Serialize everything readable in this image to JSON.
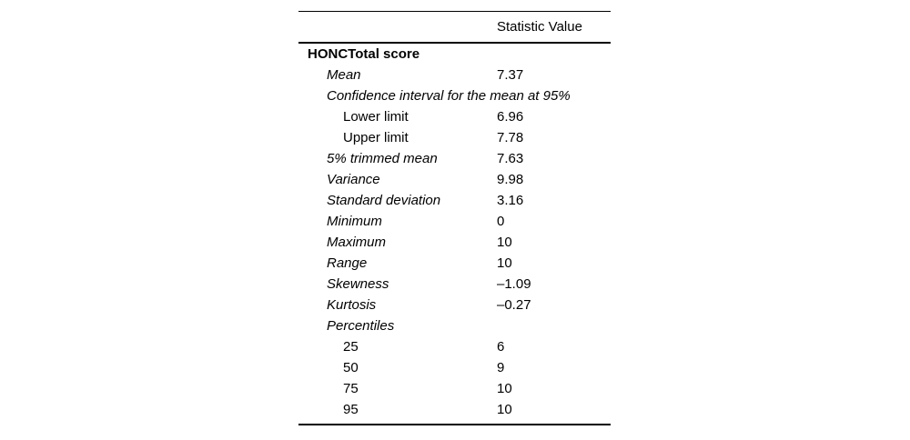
{
  "page": {
    "background_color": "#ffffff",
    "text_color": "#000000"
  },
  "table": {
    "header": {
      "value_column_label": "Statistic Value"
    },
    "rows": [
      {
        "label": "HONCTotal score",
        "value": "",
        "indent": 0,
        "style": "bold"
      },
      {
        "label": "Mean",
        "value": "7.37",
        "indent": 1,
        "style": "italic"
      },
      {
        "label": "Confidence interval for the mean at 95%",
        "value": "",
        "indent": 1,
        "style": "italic"
      },
      {
        "label": "Lower limit",
        "value": "6.96",
        "indent": 2,
        "style": "regular"
      },
      {
        "label": "Upper limit",
        "value": "7.78",
        "indent": 2,
        "style": "regular"
      },
      {
        "label": "5% trimmed mean",
        "value": "7.63",
        "indent": 1,
        "style": "italic"
      },
      {
        "label": "Variance",
        "value": "9.98",
        "indent": 1,
        "style": "italic"
      },
      {
        "label": "Standard deviation",
        "value": "3.16",
        "indent": 1,
        "style": "italic"
      },
      {
        "label": "Minimum",
        "value": "0",
        "indent": 1,
        "style": "italic"
      },
      {
        "label": "Maximum",
        "value": "10",
        "indent": 1,
        "style": "italic"
      },
      {
        "label": "Range",
        "value": "10",
        "indent": 1,
        "style": "italic"
      },
      {
        "label": "Skewness",
        "value": "–1.09",
        "indent": 1,
        "style": "italic"
      },
      {
        "label": "Kurtosis",
        "value": "–0.27",
        "indent": 1,
        "style": "italic"
      },
      {
        "label": "Percentiles",
        "value": "",
        "indent": 1,
        "style": "italic"
      },
      {
        "label": "25",
        "value": "6",
        "indent": 2,
        "style": "regular"
      },
      {
        "label": "50",
        "value": "9",
        "indent": 2,
        "style": "regular"
      },
      {
        "label": "75",
        "value": "10",
        "indent": 2,
        "style": "regular"
      },
      {
        "label": "95",
        "value": "10",
        "indent": 2,
        "style": "regular"
      }
    ]
  }
}
